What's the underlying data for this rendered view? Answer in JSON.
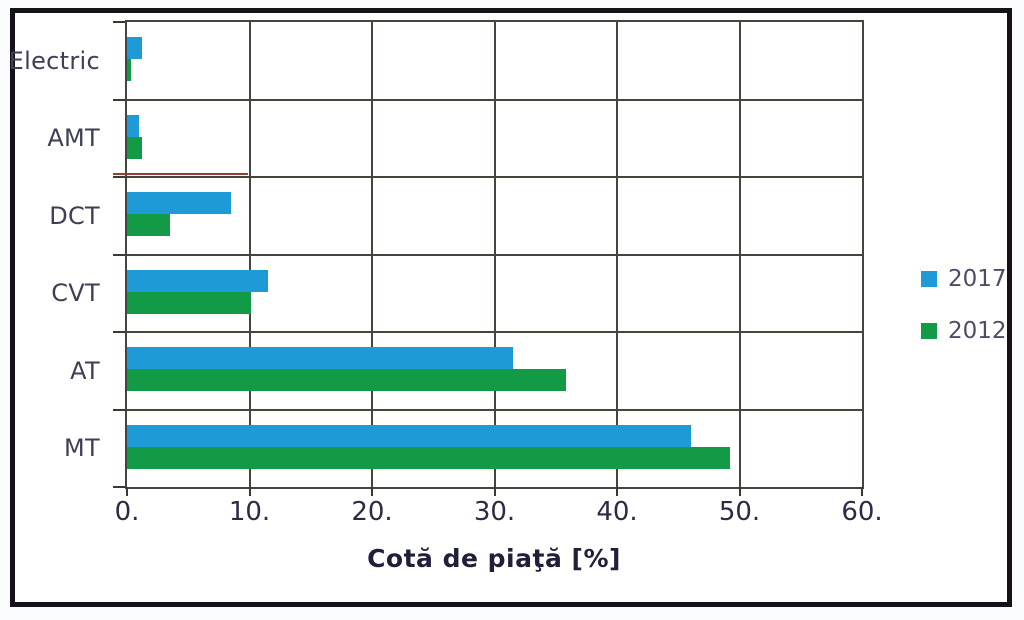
{
  "chart_data": {
    "type": "bar",
    "orientation": "horizontal",
    "title": "",
    "xlabel": "Cotă de piaţă [%]",
    "ylabel": "",
    "xlim": [
      0,
      60
    ],
    "xtick_values": [
      0,
      10,
      20,
      30,
      40,
      50,
      60
    ],
    "xtick_labels": [
      "0.",
      "10.",
      "20.",
      "30.",
      "40.",
      "50.",
      "60."
    ],
    "grid": true,
    "legend_position": "right",
    "categories": [
      "Electric",
      "AMT",
      "DCT",
      "CVT",
      "AT",
      "MT"
    ],
    "series": [
      {
        "name": "2017",
        "color": "#1e9bd7",
        "values": [
          1.2,
          1.0,
          8.5,
          11.5,
          31.5,
          46.0
        ]
      },
      {
        "name": "2012",
        "color": "#129a47",
        "values": [
          0.3,
          1.2,
          3.5,
          10.1,
          35.8,
          49.2
        ]
      }
    ],
    "annotations": [
      {
        "type": "line",
        "color": "#8f3d39",
        "row_boundary": 2,
        "x_from": -1,
        "x_to": 10
      }
    ]
  },
  "legend": {
    "items": [
      {
        "label": "2017",
        "color": "#1e9bd7"
      },
      {
        "label": "2012",
        "color": "#129a47"
      }
    ]
  },
  "colors": {
    "bar_2017": "#1e9bd7",
    "bar_2012": "#129a47",
    "gridline": "#49433e",
    "plot_border": "#49433e",
    "figure_border": "#15121a",
    "tick": "#3e3833",
    "category_text": "#3e3e55",
    "axis_tick_text": "#2b2b44",
    "axis_title_text": "#20203a",
    "legend_text": "#4d4d68",
    "annotation_line": "#8f3d39"
  }
}
